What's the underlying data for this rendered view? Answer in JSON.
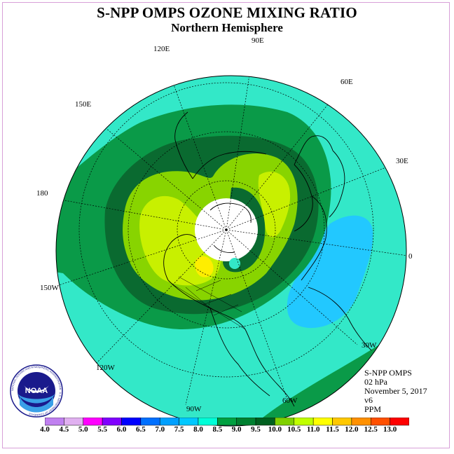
{
  "title": "S-NPP OMPS OZONE MIXING RATIO",
  "subtitle": "Northern Hemisphere",
  "longitude_labels": [
    "0",
    "30E",
    "60E",
    "90E",
    "120E",
    "150E",
    "180",
    "150W",
    "120W",
    "90W",
    "60W",
    "30W"
  ],
  "info": {
    "instrument": "S-NPP OMPS",
    "level": "02 hPa",
    "date": "November 5, 2017",
    "version": "v6",
    "units": "PPM"
  },
  "logo": {
    "text": "NOAA",
    "ring_text": "NATIONAL OCEANIC AND ATMOSPHERIC ADMINISTRATION · U.S. DEPARTMENT OF COMMERCE",
    "colors": {
      "dark": "#1a1a8c",
      "light": "#3aa0e8"
    }
  },
  "colorbar": {
    "labels": [
      "4.0",
      "4.5",
      "5.0",
      "5.5",
      "6.0",
      "6.5",
      "7.0",
      "7.5",
      "8.0",
      "8.5",
      "9.0",
      "9.5",
      "10.0",
      "10.5",
      "11.0",
      "11.5",
      "12.0",
      "12.5",
      "13.0"
    ],
    "colors": [
      "#c080f0",
      "#e0b0f0",
      "#ff00ff",
      "#8000ff",
      "#0000ff",
      "#0070ff",
      "#00a0ff",
      "#00c8ff",
      "#00ffd8",
      "#00a040",
      "#008030",
      "#006020",
      "#80d000",
      "#c0ff00",
      "#ffff00",
      "#ffc800",
      "#ff9000",
      "#ff5000",
      "#ff0000",
      "#a06040"
    ]
  },
  "map_colors": {
    "background": "#33e8c8",
    "level_8_5": "#0a9a48",
    "level_9_0": "#0a6a30",
    "level_9_5": "#88d400",
    "level_10_0": "#c8f000",
    "level_10_5": "#ffee00",
    "level_7_0": "#22c8ff",
    "polar_night": "#ffffff"
  }
}
